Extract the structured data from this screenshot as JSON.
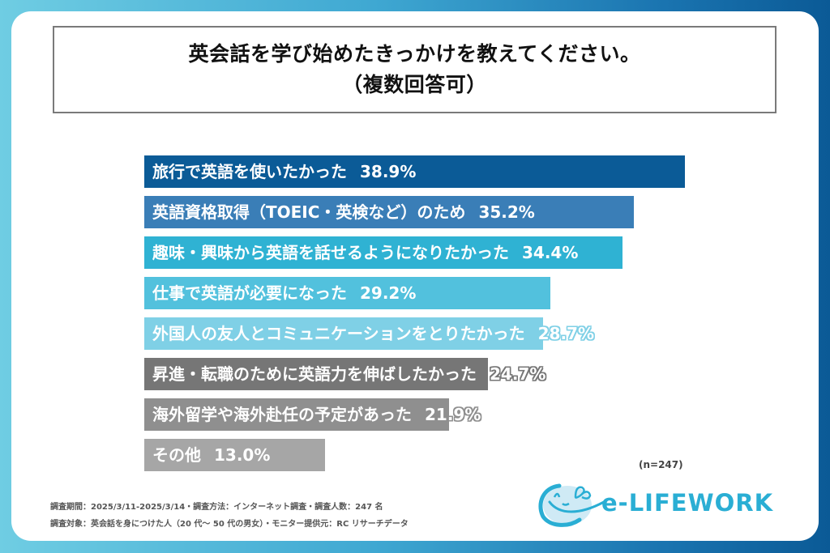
{
  "title": {
    "line1": "英会話を学び始めたきっかけを教えてください。",
    "line2": "（複数回答可）"
  },
  "sample_size": "(n=247)",
  "footer": {
    "line1": "調査期間：2025/3/11-2025/3/14・調査方法：インターネット調査・調査人数：247 名",
    "line2": "調査対象：英会話を身につけた人（20 代～ 50 代の男女）・モニター提供元：RC リサーチデータ"
  },
  "logo": {
    "text": "e-LIFEWORK",
    "color": "#2aaed4"
  },
  "bars": [
    {
      "label": "旅行で英語を使いたかった",
      "value": "38.9%",
      "color": "#0b5b97",
      "outline": "#0b5b97"
    },
    {
      "label": "英語資格取得（TOEIC・英検など）のため",
      "value": "35.2%",
      "color": "#3a7eb7",
      "outline": "#3a7eb7"
    },
    {
      "label": "趣味・興味から英語を話せるようになりたかった",
      "value": "34.4%",
      "color": "#2fb2d3",
      "outline": "#2fb2d3"
    },
    {
      "label": "仕事で英語が必要になった",
      "value": "29.2%",
      "color": "#52c1dd",
      "outline": "#52c1dd"
    },
    {
      "label": "外国人の友人とコミュニケーションをとりたかった",
      "value": "28.7%",
      "color": "#7fd0e6",
      "outline": "#7fd0e6"
    },
    {
      "label": "昇進・転職のために英語力を伸ばしたかった",
      "value": "24.7%",
      "color": "#767676",
      "outline": "#767676"
    },
    {
      "label": "海外留学や海外赴任の予定があった",
      "value": "21.9%",
      "color": "#8f8f8f",
      "outline": "#8f8f8f"
    },
    {
      "label": "その他",
      "value": "13.0%",
      "color": "#a6a6a6",
      "outline": "#a6a6a6"
    }
  ],
  "chart_data": {
    "type": "bar",
    "orientation": "horizontal",
    "title": "英会話を学び始めたきっかけを教えてください。（複数回答可）",
    "categories": [
      "旅行で英語を使いたかった",
      "英語資格取得（TOEIC・英検など）のため",
      "趣味・興味から英語を話せるようになりたかった",
      "仕事で英語が必要になった",
      "外国人の友人とコミュニケーションをとりたかった",
      "昇進・転職のために英語力を伸ばしたかった",
      "海外留学や海外赴任の予定があった",
      "その他"
    ],
    "values": [
      38.9,
      35.2,
      34.4,
      29.2,
      28.7,
      24.7,
      21.9,
      13.0
    ],
    "unit": "%",
    "xlabel": "",
    "ylabel": "",
    "annotations": [
      "(n=247)"
    ],
    "grid": false,
    "legend": null
  }
}
